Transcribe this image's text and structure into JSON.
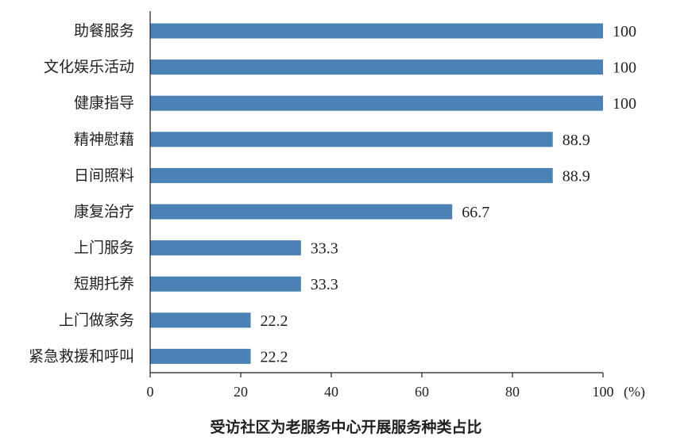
{
  "chart_data": {
    "type": "bar",
    "orientation": "horizontal",
    "title": "受访社区为老服务中心开展服务种类占比",
    "xlabel": "",
    "ylabel": "",
    "unit_label": "(%)",
    "xlim": [
      0,
      100
    ],
    "x_ticks": [
      0,
      20,
      40,
      60,
      80,
      100
    ],
    "grid": false,
    "bar_color": "#4a82b5",
    "categories": [
      "助餐服务",
      "文化娱乐活动",
      "健康指导",
      "精神慰藉",
      "日间照料",
      "康复治疗",
      "上门服务",
      "短期托养",
      "上门做家务",
      "紧急救援和呼叫"
    ],
    "values": [
      100,
      100,
      100,
      88.9,
      88.9,
      66.7,
      33.3,
      33.3,
      22.2,
      22.2
    ],
    "value_labels": [
      "100",
      "100",
      "100",
      "88.9",
      "88.9",
      "66.7",
      "33.3",
      "33.3",
      "22.2",
      "22.2"
    ]
  }
}
